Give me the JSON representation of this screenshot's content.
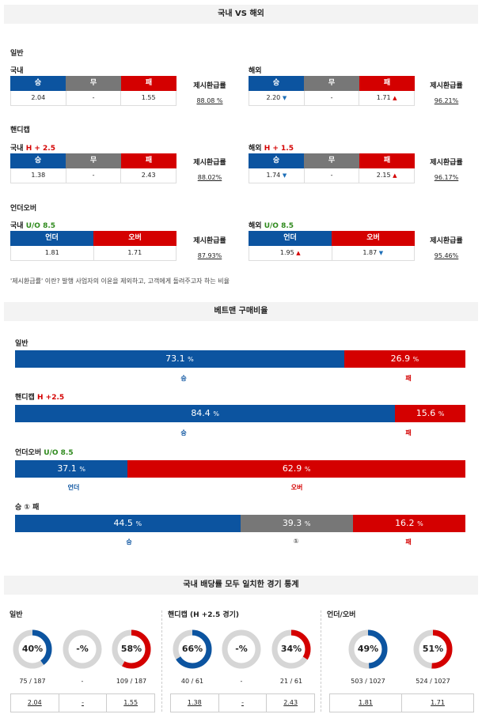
{
  "section1": {
    "title": "국내 VS 해외",
    "general_label": "일반",
    "handicap_label": "핸디캡",
    "overunder_label": "언더오버",
    "note": "'제시환급률' 이란? 발행 사업자의 이윤을 제외하고, 고객에게 돌려주고자 하는 비율",
    "rate_label": "제시환급률",
    "headers3": [
      "승",
      "무",
      "패"
    ],
    "headers2": [
      "언더",
      "오버"
    ],
    "domestic": {
      "label": "국내",
      "general": {
        "values": [
          "2.04",
          "-",
          "1.55"
        ],
        "rate": "88.08 %"
      },
      "handicap": {
        "suffix": "H + 2.5",
        "values": [
          "1.38",
          "-",
          "2.43"
        ],
        "rate": "88.02%"
      },
      "ou": {
        "suffix": "U/O 8.5",
        "values": [
          "1.81",
          "1.71"
        ],
        "rate": "87.93%"
      }
    },
    "overseas": {
      "label": "해외",
      "general": {
        "values": [
          "2.20",
          "-",
          "1.71"
        ],
        "rate": "96.21%"
      },
      "handicap": {
        "suffix": "H + 1.5",
        "values": [
          "1.74",
          "-",
          "2.15"
        ],
        "rate": "96.17%"
      },
      "ou": {
        "suffix": "U/O 8.5",
        "values": [
          "1.95",
          "1.87"
        ],
        "rate": "95.46%"
      }
    }
  },
  "section2": {
    "title": "베트맨 구매비율",
    "unit": "%",
    "general": {
      "label": "일반",
      "win": "73.1",
      "lose": "26.9",
      "win_label": "승",
      "lose_label": "패"
    },
    "handicap": {
      "label": "핸디캡",
      "suffix": "H +2.5",
      "win": "84.4",
      "lose": "15.6",
      "win_label": "승",
      "lose_label": "패"
    },
    "ou": {
      "label": "언더오버",
      "suffix": "U/O 8.5",
      "under": "37.1",
      "over": "62.9",
      "under_label": "언더",
      "over_label": "오버"
    },
    "w1l": {
      "label": "승 ① 패",
      "win": "44.5",
      "draw": "39.3",
      "lose": "16.2",
      "win_label": "승",
      "draw_label": "①",
      "lose_label": "패"
    }
  },
  "section3": {
    "title": "국내 배당률 모두 일치한 경기 통계",
    "general": {
      "label": "일반",
      "donuts": [
        {
          "text": "40%",
          "pct": 40,
          "color": "#0c54a0",
          "count": "75 / 187",
          "odds": "2.04"
        },
        {
          "text": "-%",
          "pct": 0,
          "color": "#777777",
          "count": "-",
          "odds": "-"
        },
        {
          "text": "58%",
          "pct": 58,
          "color": "#d40000",
          "count": "109 / 187",
          "odds": "1.55"
        }
      ]
    },
    "handicap": {
      "label": "핸디캡 (H +2.5 경기)",
      "donuts": [
        {
          "text": "66%",
          "pct": 66,
          "color": "#0c54a0",
          "count": "40 / 61",
          "odds": "1.38"
        },
        {
          "text": "-%",
          "pct": 0,
          "color": "#777777",
          "count": "-",
          "odds": "-"
        },
        {
          "text": "34%",
          "pct": 34,
          "color": "#d40000",
          "count": "21 / 61",
          "odds": "2.43"
        }
      ]
    },
    "ou": {
      "label": "언더/오버",
      "donuts": [
        {
          "text": "49%",
          "pct": 49,
          "color": "#0c54a0",
          "count": "503 / 1027",
          "odds": "1.81"
        },
        {
          "text": "51%",
          "pct": 51,
          "color": "#d40000",
          "count": "524 / 1027",
          "odds": "1.71"
        }
      ]
    }
  }
}
